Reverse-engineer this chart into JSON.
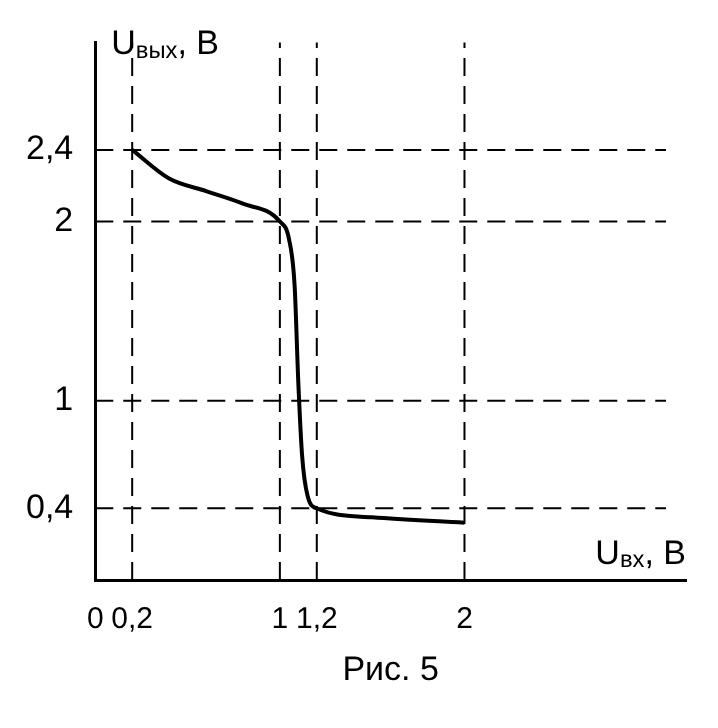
{
  "chart_data": {
    "type": "line",
    "xlabel": "U$_{вх}$, В",
    "ylabel": "U$_{вых}$, В",
    "annotations": [
      "Рис. 5"
    ],
    "series": [
      {
        "color": "#000000",
        "x": [
          0.2,
          0.4,
          0.6,
          0.8,
          1.0,
          1.05,
          1.08,
          1.1,
          1.12,
          1.15,
          1.2,
          1.5,
          2.0
        ],
        "values": [
          2.4,
          2.24,
          2.17,
          2.1,
          2.0,
          1.9,
          1.64,
          1.1,
          0.7,
          0.47,
          0.4,
          0.35,
          0.32
        ]
      }
    ],
    "xlim": [
      0,
      3.2
    ],
    "ylim": [
      0,
      3.0
    ],
    "xticks": [
      {
        "value": 0,
        "label": "0"
      },
      {
        "value": 0.2,
        "label": "0,2"
      },
      {
        "value": 1,
        "label": "1"
      },
      {
        "value": 1.2,
        "label": "1,2"
      },
      {
        "value": 2,
        "label": "2"
      }
    ],
    "yticks": [
      {
        "value": 0.4,
        "label": "0,4"
      },
      {
        "value": 1,
        "label": "1"
      },
      {
        "value": 2,
        "label": "2"
      },
      {
        "value": 2.4,
        "label": "2,4"
      }
    ],
    "grid": true,
    "marker": "none",
    "line_style": "solid",
    "legend": false
  }
}
